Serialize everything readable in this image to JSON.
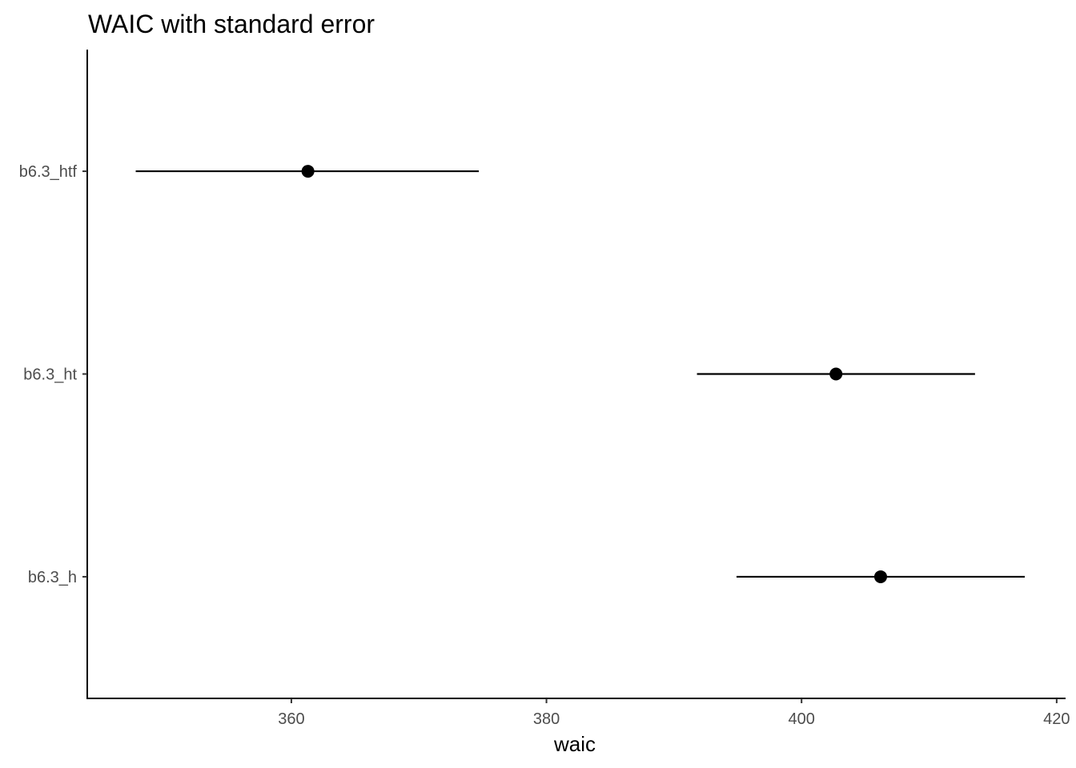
{
  "chart_data": {
    "type": "scatter",
    "title": "WAIC with standard error",
    "xlabel": "waic",
    "ylabel": "",
    "xlim": [
      344.0,
      420.7
    ],
    "xticks": [
      360,
      380,
      400,
      420
    ],
    "categories": [
      "b6.3_htf",
      "b6.3_ht",
      "b6.3_h"
    ],
    "points": [
      {
        "label": "b6.3_htf",
        "x": 361.3,
        "xmin": 347.8,
        "xmax": 374.7
      },
      {
        "label": "b6.3_ht",
        "x": 402.7,
        "xmin": 391.8,
        "xmax": 413.6
      },
      {
        "label": "b6.3_h",
        "x": 406.2,
        "xmin": 394.9,
        "xmax": 417.5
      }
    ],
    "grid": false,
    "legend": "none",
    "colors": {
      "point": "#000000",
      "errorbar": "#000000",
      "tick_text": "#4d4d4d"
    }
  }
}
